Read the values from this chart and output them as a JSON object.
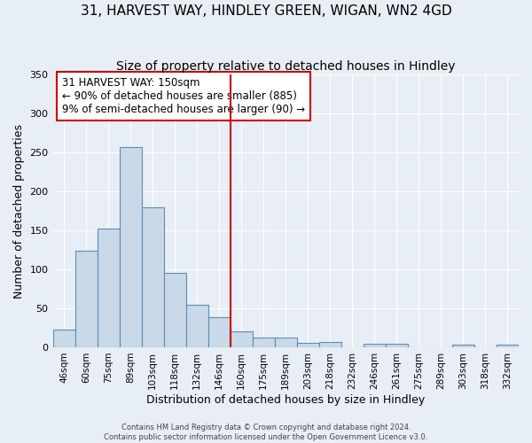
{
  "title": "31, HARVEST WAY, HINDLEY GREEN, WIGAN, WN2 4GD",
  "subtitle": "Size of property relative to detached houses in Hindley",
  "xlabel": "Distribution of detached houses by size in Hindley",
  "ylabel": "Number of detached properties",
  "bar_labels": [
    "46sqm",
    "60sqm",
    "75sqm",
    "89sqm",
    "103sqm",
    "118sqm",
    "132sqm",
    "146sqm",
    "160sqm",
    "175sqm",
    "189sqm",
    "203sqm",
    "218sqm",
    "232sqm",
    "246sqm",
    "261sqm",
    "275sqm",
    "289sqm",
    "303sqm",
    "318sqm",
    "332sqm"
  ],
  "bar_values": [
    23,
    124,
    152,
    257,
    180,
    95,
    55,
    39,
    20,
    12,
    13,
    6,
    7,
    0,
    5,
    5,
    0,
    0,
    3,
    0,
    3
  ],
  "bar_color": "#c9d9e8",
  "bar_edgecolor": "#5b8db8",
  "vline_x": 7.5,
  "vline_color": "#cc0000",
  "annotation_title": "31 HARVEST WAY: 150sqm",
  "annotation_line1": "← 90% of detached houses are smaller (885)",
  "annotation_line2": "9% of semi-detached houses are larger (90) →",
  "annotation_box_color": "#cc0000",
  "ylim": [
    0,
    350
  ],
  "yticks": [
    0,
    50,
    100,
    150,
    200,
    250,
    300,
    350
  ],
  "bg_color": "#e8eef5",
  "footer_line1": "Contains HM Land Registry data © Crown copyright and database right 2024.",
  "footer_line2": "Contains public sector information licensed under the Open Government Licence v3.0.",
  "title_fontsize": 11,
  "subtitle_fontsize": 10,
  "xlabel_fontsize": 9,
  "ylabel_fontsize": 9
}
